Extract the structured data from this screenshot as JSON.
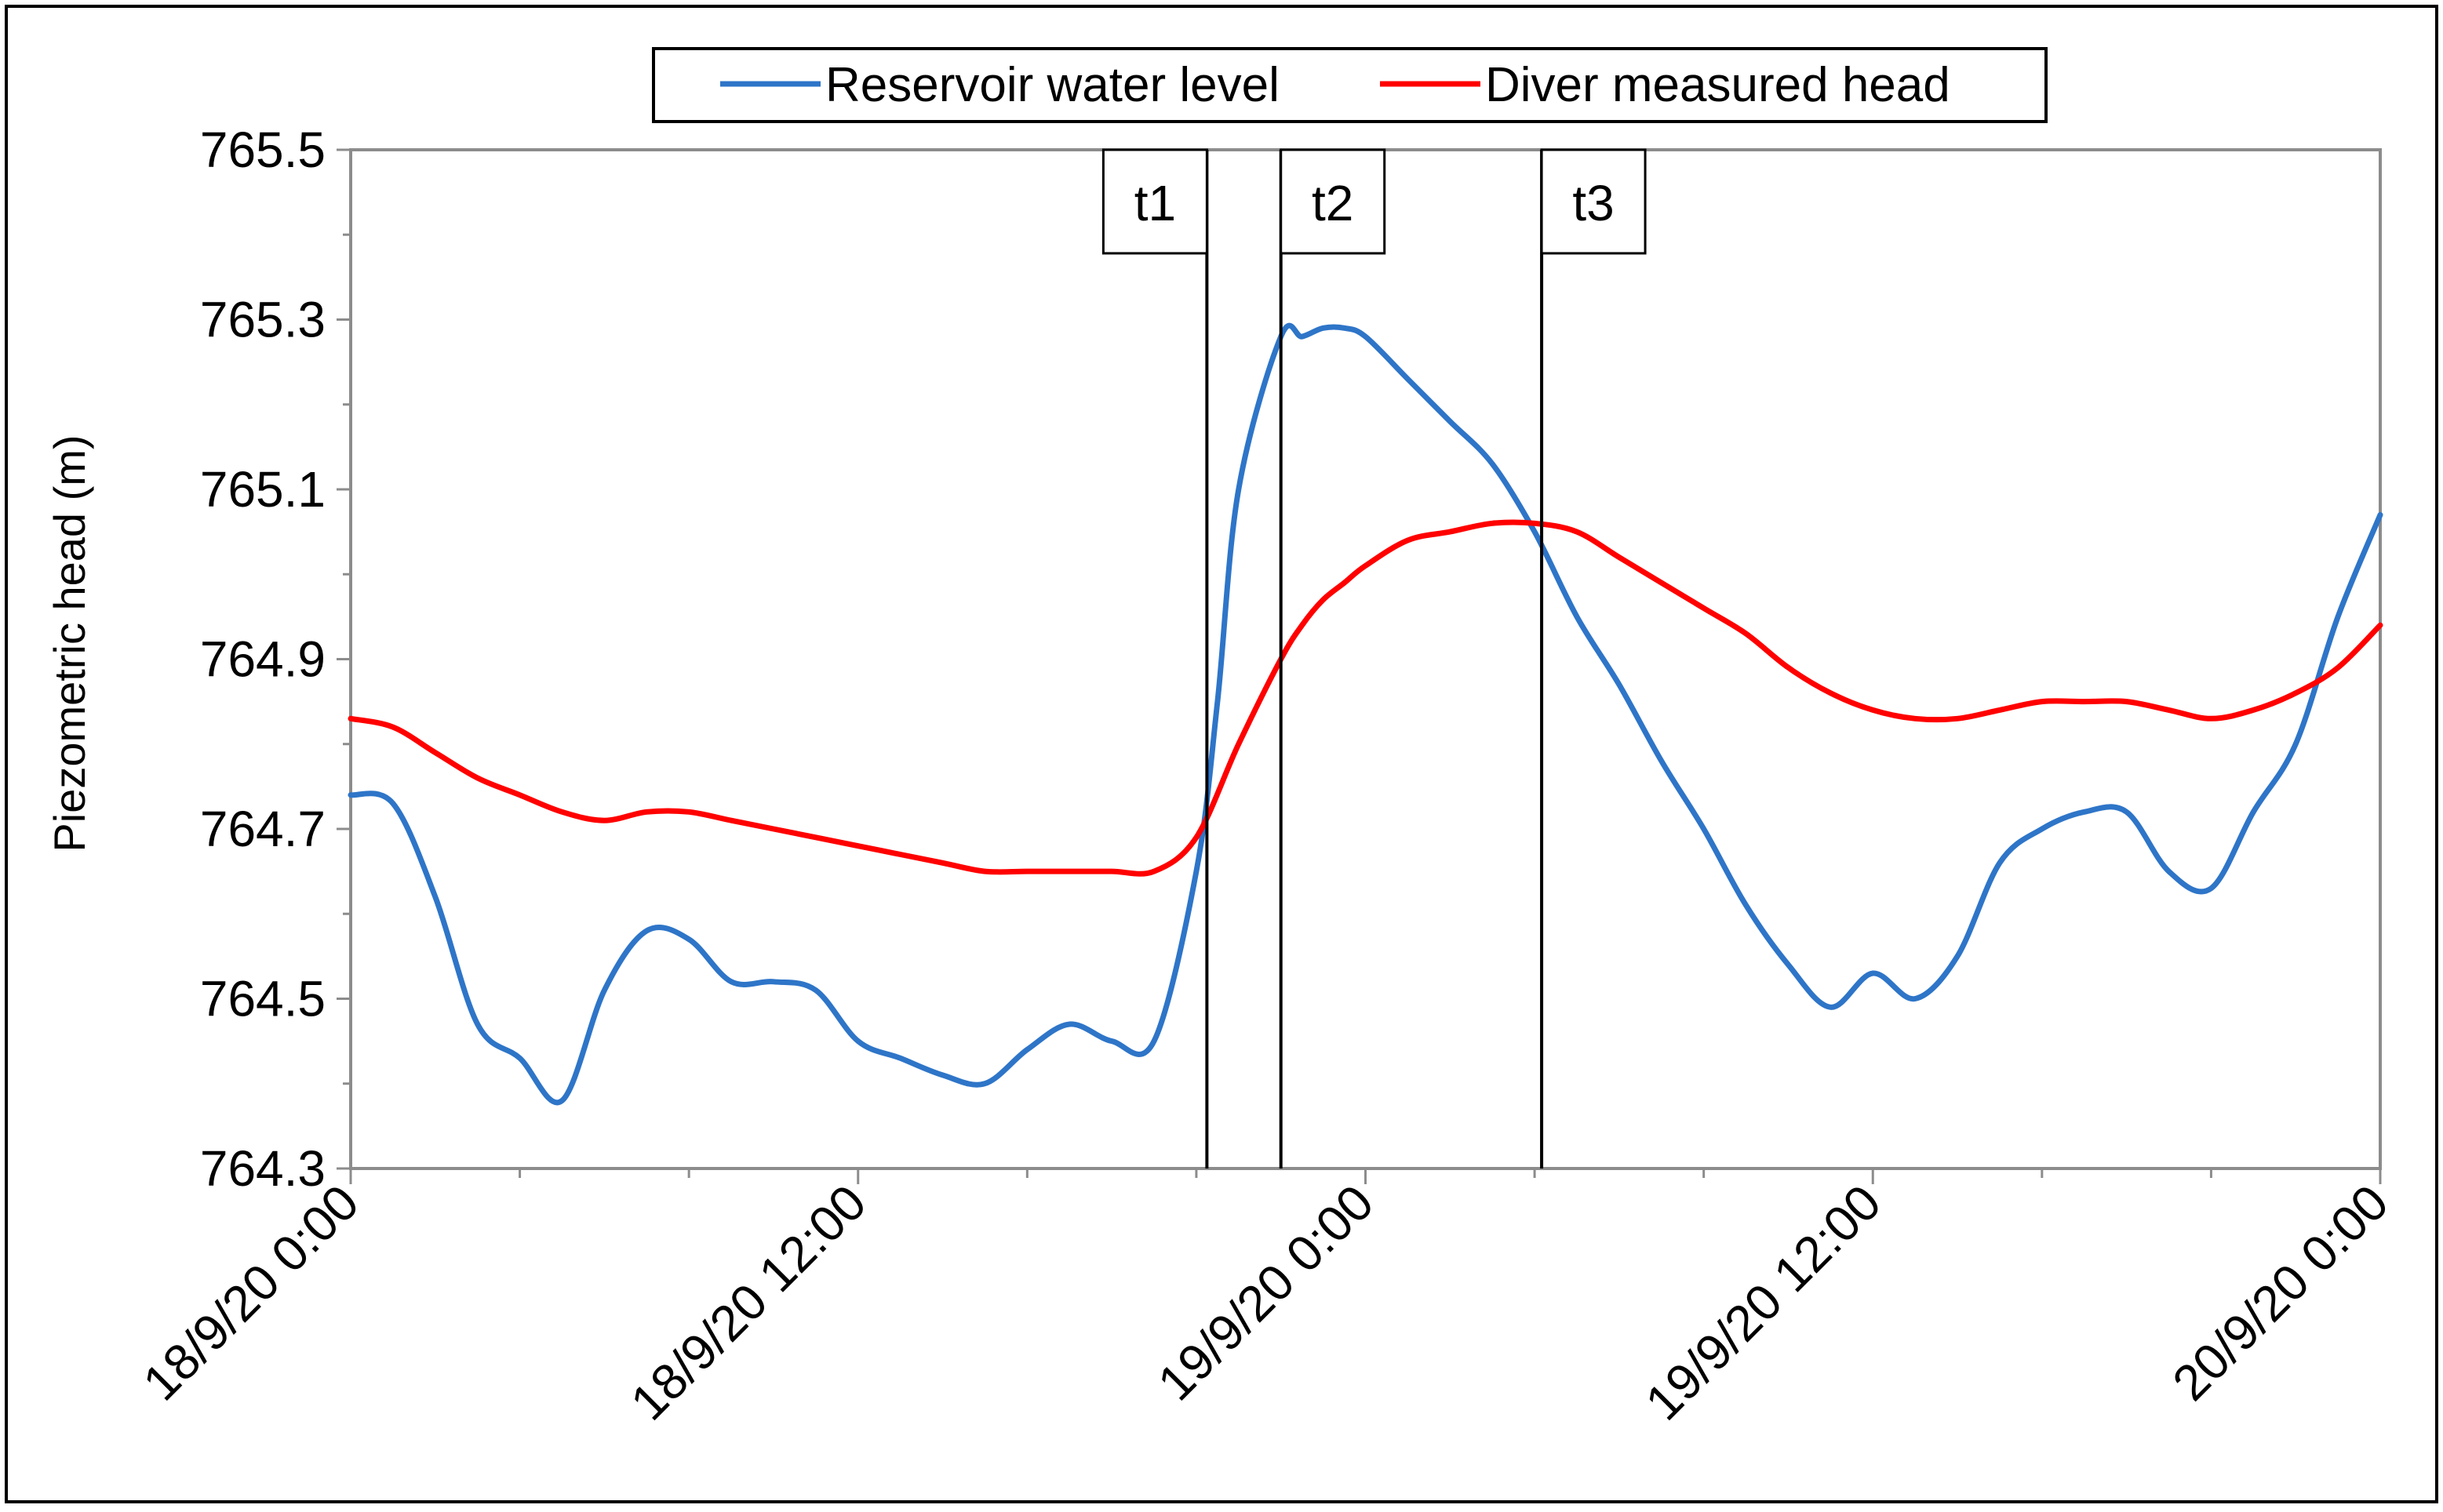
{
  "chart_data": {
    "type": "line",
    "title": "",
    "xlabel": "",
    "ylabel": "Piezometric head (m)",
    "ylim": [
      764.3,
      765.5
    ],
    "xlim": [
      "18/9/20 0:00",
      "20/9/20 0:00"
    ],
    "y_ticks": [
      "764.3",
      "764.5",
      "764.7",
      "764.9",
      "765.1",
      "765.3",
      "765.5"
    ],
    "x_tick_labels": [
      "18/9/20 0:00",
      "18/9/20 12:00",
      "19/9/20 0:00",
      "19/9/20 12:00",
      "20/9/20 0:00"
    ],
    "grid": false,
    "legend": {
      "placement": "top-center"
    },
    "x_hours_note": "",
    "series": [
      {
        "name": "Reservoir water level",
        "color": "#2E75C8",
        "x": [
          "18/9/20 0:00",
          "18/9/20 1:00",
          "18/9/20 2:00",
          "18/9/20 3:00",
          "18/9/20 4:00",
          "18/9/20 5:00",
          "18/9/20 6:00",
          "18/9/20 7:00",
          "18/9/20 8:00",
          "18/9/20 9:00",
          "18/9/20 10:00",
          "18/9/20 11:00",
          "18/9/20 12:00",
          "18/9/20 13:00",
          "18/9/20 14:00",
          "18/9/20 15:00",
          "18/9/20 16:00",
          "18/9/20 17:00",
          "18/9/20 18:00",
          "18/9/20 19:00",
          "18/9/20 20:00",
          "18/9/20 20:30",
          "18/9/20 21:00",
          "18/9/20 22:00",
          "18/9/20 22:30",
          "18/9/20 23:00",
          "18/9/20 23:30",
          "19/9/20 0:00",
          "19/9/20 1:00",
          "19/9/20 2:00",
          "19/9/20 3:00",
          "19/9/20 4:00",
          "19/9/20 5:00",
          "19/9/20 6:00",
          "19/9/20 7:00",
          "19/9/20 8:00",
          "19/9/20 9:00",
          "19/9/20 10:00",
          "19/9/20 11:00",
          "19/9/20 12:00",
          "19/9/20 13:00",
          "19/9/20 14:00",
          "19/9/20 15:00",
          "19/9/20 16:00",
          "19/9/20 17:00",
          "19/9/20 18:00",
          "19/9/20 19:00",
          "19/9/20 20:00",
          "19/9/20 21:00",
          "19/9/20 22:00",
          "19/9/20 23:00",
          "20/9/20 0:00"
        ],
        "values": [
          764.74,
          764.73,
          764.62,
          764.47,
          764.43,
          764.38,
          764.51,
          764.58,
          764.57,
          764.52,
          764.52,
          764.51,
          764.45,
          764.43,
          764.41,
          764.4,
          764.44,
          764.47,
          764.45,
          764.45,
          764.65,
          764.85,
          765.1,
          765.28,
          765.28,
          765.29,
          765.29,
          765.28,
          765.23,
          765.18,
          765.13,
          765.05,
          764.95,
          764.87,
          764.78,
          764.7,
          764.61,
          764.54,
          764.49,
          764.53,
          764.5,
          764.55,
          764.66,
          764.7,
          764.72,
          764.72,
          764.65,
          764.63,
          764.72,
          764.8,
          764.95,
          765.07
        ]
      },
      {
        "name": "Diver measured head",
        "color": "#FF0000",
        "x": [
          "18/9/20 0:00",
          "18/9/20 1:00",
          "18/9/20 2:00",
          "18/9/20 3:00",
          "18/9/20 4:00",
          "18/9/20 5:00",
          "18/9/20 6:00",
          "18/9/20 7:00",
          "18/9/20 8:00",
          "18/9/20 9:00",
          "18/9/20 10:00",
          "18/9/20 11:00",
          "18/9/20 12:00",
          "18/9/20 13:00",
          "18/9/20 14:00",
          "18/9/20 15:00",
          "18/9/20 16:00",
          "18/9/20 17:00",
          "18/9/20 18:00",
          "18/9/20 19:00",
          "18/9/20 20:00",
          "18/9/20 21:00",
          "18/9/20 22:00",
          "18/9/20 22:30",
          "18/9/20 23:00",
          "18/9/20 23:30",
          "19/9/20 0:00",
          "19/9/20 1:00",
          "19/9/20 2:00",
          "19/9/20 3:00",
          "19/9/20 4:00",
          "19/9/20 5:00",
          "19/9/20 6:00",
          "19/9/20 7:00",
          "19/9/20 8:00",
          "19/9/20 9:00",
          "19/9/20 10:00",
          "19/9/20 11:00",
          "19/9/20 12:00",
          "19/9/20 13:00",
          "19/9/20 14:00",
          "19/9/20 15:00",
          "19/9/20 16:00",
          "19/9/20 17:00",
          "19/9/20 18:00",
          "19/9/20 19:00",
          "19/9/20 20:00",
          "19/9/20 21:00",
          "19/9/20 22:00",
          "19/9/20 23:00",
          "20/9/20 0:00"
        ],
        "values": [
          764.83,
          764.82,
          764.79,
          764.76,
          764.74,
          764.72,
          764.71,
          764.72,
          764.72,
          764.71,
          764.7,
          764.69,
          764.68,
          764.67,
          764.66,
          764.65,
          764.65,
          764.65,
          764.65,
          764.65,
          764.69,
          764.8,
          764.9,
          764.94,
          764.97,
          764.99,
          765.01,
          765.04,
          765.05,
          765.06,
          765.06,
          765.05,
          765.02,
          764.99,
          764.96,
          764.93,
          764.89,
          764.86,
          764.84,
          764.83,
          764.83,
          764.84,
          764.85,
          764.85,
          764.85,
          764.84,
          764.83,
          764.84,
          764.86,
          764.89,
          764.94
        ]
      }
    ],
    "annotations": [
      {
        "label": "t1",
        "x": "18/9/20 20:15"
      },
      {
        "label": "t2",
        "x": "18/9/20 22:00"
      },
      {
        "label": "t3",
        "x": "19/9/20 4:10"
      }
    ]
  }
}
